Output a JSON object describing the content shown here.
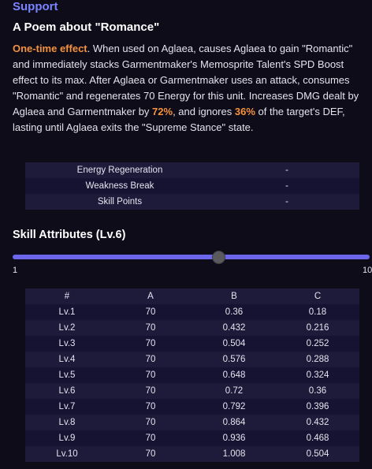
{
  "section": {
    "title": "Support"
  },
  "skill": {
    "name": "A Poem about \"Romance\"",
    "desc_prefix": "One-time effect",
    "desc_part1": ". When used on Aglaea, causes Aglaea to gain \"Romantic\" and immediately stacks Garmentmaker's Memosprite Talent's SPD Boost effect to its max. After Aglaea or Garmentmaker uses an attack, consumes \"Romantic\" and regenerates 70 Energy for this unit. Increases DMG dealt by Aglaea and Garmentmaker by ",
    "desc_value1": "72%",
    "desc_part2": ", and ignores ",
    "desc_value2": "36%",
    "desc_part3": " of the target's DEF, lasting until Aglaea exits the \"Supreme Stance\" state."
  },
  "info": [
    {
      "label": "Energy Regeneration",
      "value": "-"
    },
    {
      "label": "Weakness Break",
      "value": "-"
    },
    {
      "label": "Skill Points",
      "value": "-"
    }
  ],
  "attributes": {
    "title": "Skill Attributes (Lv.6)",
    "slider": {
      "min_label": "1",
      "max_label": "10",
      "value": 6,
      "min": 1,
      "max": 10
    },
    "headers": [
      "#",
      "A",
      "B",
      "C"
    ],
    "rows": [
      [
        "Lv.1",
        "70",
        "0.36",
        "0.18"
      ],
      [
        "Lv.2",
        "70",
        "0.432",
        "0.216"
      ],
      [
        "Lv.3",
        "70",
        "0.504",
        "0.252"
      ],
      [
        "Lv.4",
        "70",
        "0.576",
        "0.288"
      ],
      [
        "Lv.5",
        "70",
        "0.648",
        "0.324"
      ],
      [
        "Lv.6",
        "70",
        "0.72",
        "0.36"
      ],
      [
        "Lv.7",
        "70",
        "0.792",
        "0.396"
      ],
      [
        "Lv.8",
        "70",
        "0.864",
        "0.432"
      ],
      [
        "Lv.9",
        "70",
        "0.936",
        "0.468"
      ],
      [
        "Lv.10",
        "70",
        "1.008",
        "0.504"
      ]
    ]
  },
  "colors": {
    "accent": "#7a84ff",
    "highlight": "#f5923e",
    "slider": "#6b66ea",
    "background": "#0f0c1a"
  }
}
